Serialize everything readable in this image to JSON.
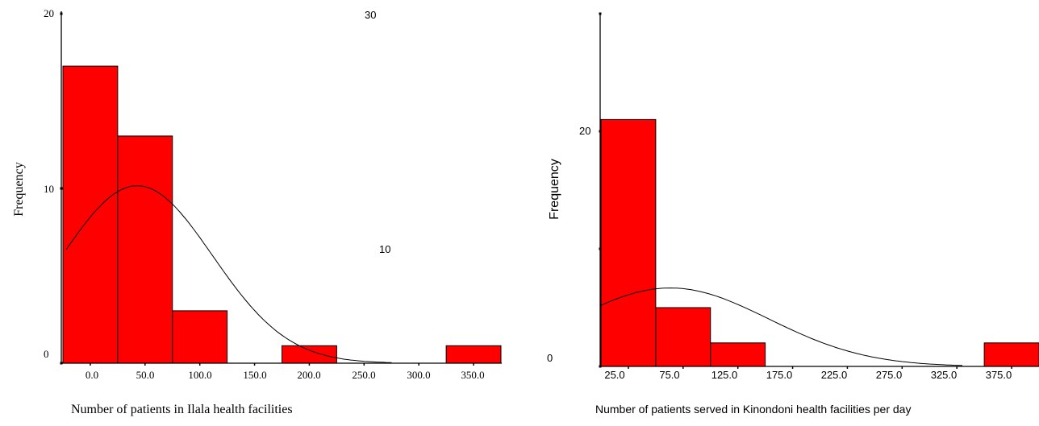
{
  "chart_data": [
    {
      "type": "bar",
      "xlabel": "Number of patients in Ilala health facilities",
      "ylabel": "Frequency",
      "ylim": [
        0,
        20
      ],
      "yticks": [
        0,
        10,
        20
      ],
      "xtick_labels": [
        "0.0",
        "50.0",
        "100.0",
        "150.0",
        "200.0",
        "250.0",
        "300.0",
        "350.0"
      ],
      "bins": [
        {
          "x0": -25,
          "x1": 25,
          "value": 17
        },
        {
          "x0": 25,
          "x1": 75,
          "value": 13
        },
        {
          "x0": 75,
          "x1": 125,
          "value": 3
        },
        {
          "x0": 175,
          "x1": 225,
          "value": 1
        },
        {
          "x0": 325,
          "x1": 375,
          "value": 1
        }
      ],
      "bar_color": "#ff0000",
      "curve": "normal",
      "stray_labels": [
        "30",
        "10"
      ]
    },
    {
      "type": "bar",
      "xlabel": "Number of patients served in Kinondoni health facilities per day",
      "ylabel": "Frequency",
      "ylim": [
        0,
        30
      ],
      "yticks": [
        0,
        10,
        20,
        30
      ],
      "ytick_labels": [
        "0",
        "20"
      ],
      "xtick_labels": [
        "25.0",
        "75.0",
        "125.0",
        "175.0",
        "225.0",
        "275.0",
        "325.0",
        "375.0"
      ],
      "bins": [
        {
          "x0": 0,
          "x1": 50,
          "value": 21
        },
        {
          "x0": 50,
          "x1": 100,
          "value": 5
        },
        {
          "x0": 100,
          "x1": 150,
          "value": 2
        },
        {
          "x0": 350,
          "x1": 400,
          "value": 2
        }
      ],
      "bar_color": "#ff0000",
      "curve": "normal"
    }
  ]
}
